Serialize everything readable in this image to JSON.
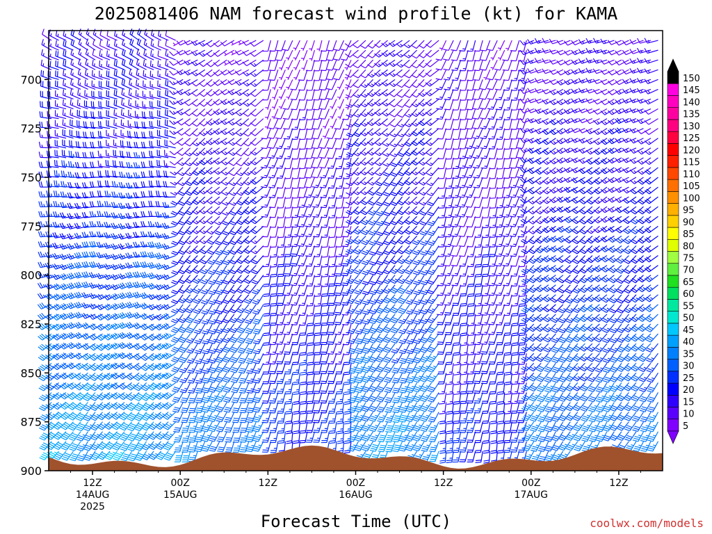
{
  "chart_data": {
    "type": "wind-barb time-height",
    "title": "2025081406 NAM forecast wind profile (kt) for KAMA",
    "xlabel": "Forecast Time (UTC)",
    "ylabel": "",
    "y_ticks": [
      700,
      725,
      750,
      775,
      800,
      825,
      850,
      875,
      900
    ],
    "ylim": [
      900,
      675
    ],
    "x_ticks": [
      {
        "hour": 6,
        "line1": "12Z",
        "line2": "14AUG",
        "line3": "2025"
      },
      {
        "hour": 18,
        "line1": "00Z",
        "line2": "15AUG",
        "line3": ""
      },
      {
        "hour": 30,
        "line1": "12Z",
        "line2": "",
        "line3": ""
      },
      {
        "hour": 42,
        "line1": "00Z",
        "line2": "16AUG",
        "line3": ""
      },
      {
        "hour": 54,
        "line1": "12Z",
        "line2": "",
        "line3": ""
      },
      {
        "hour": 66,
        "line1": "00Z",
        "line2": "17AUG",
        "line3": ""
      },
      {
        "hour": 78,
        "line1": "12Z",
        "line2": "",
        "line3": ""
      }
    ],
    "xlim": [
      0,
      84
    ],
    "wind_speed_scale_kt": [
      5,
      10,
      15,
      20,
      25,
      30,
      35,
      40,
      45,
      50,
      55,
      60,
      65,
      70,
      75,
      80,
      85,
      90,
      95,
      100,
      105,
      110,
      115,
      120,
      125,
      130,
      135,
      140,
      145,
      150
    ],
    "scale_colors": [
      "#8000ff",
      "#5a00ff",
      "#3000ff",
      "#0000ff",
      "#0030ff",
      "#0060ff",
      "#0080ff",
      "#00a0ff",
      "#00c8ff",
      "#00e8d0",
      "#00e8a0",
      "#00e060",
      "#20e020",
      "#60f040",
      "#a0ff40",
      "#e0ff00",
      "#ffff00",
      "#ffd000",
      "#ffb000",
      "#ff9000",
      "#ff7000",
      "#ff4800",
      "#ff2000",
      "#ff0000",
      "#ff0040",
      "#ff0080",
      "#ff00a0",
      "#ff00c0",
      "#ff00e0",
      "#000000"
    ],
    "terrain_color": "#a0522d",
    "regimes": [
      {
        "t0": 0,
        "t1": 18,
        "top_dir": 300,
        "top_spd": 15,
        "low_dir": 215,
        "low_spd": 40
      },
      {
        "t0": 18,
        "t1": 30,
        "top_dir": 240,
        "top_spd": 10,
        "low_dir": 200,
        "low_spd": 35
      },
      {
        "t0": 30,
        "t1": 42,
        "top_dir": 200,
        "top_spd": 8,
        "low_dir": 190,
        "low_spd": 25
      },
      {
        "t0": 42,
        "t1": 54,
        "top_dir": 230,
        "top_spd": 12,
        "low_dir": 205,
        "low_spd": 38
      },
      {
        "t0": 54,
        "t1": 66,
        "top_dir": 200,
        "top_spd": 10,
        "low_dir": 190,
        "low_spd": 22
      },
      {
        "t0": 66,
        "t1": 84,
        "top_dir": 250,
        "top_spd": 12,
        "low_dir": 210,
        "low_spd": 35
      }
    ]
  },
  "credit": "coolwx.com/models"
}
